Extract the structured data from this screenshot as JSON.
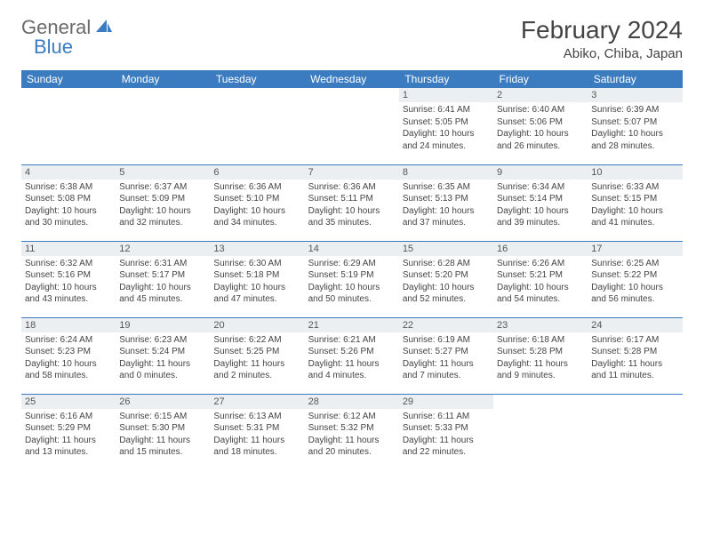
{
  "logo": {
    "part1": "General",
    "part2": "Blue"
  },
  "title": "February 2024",
  "location": "Abiko, Chiba, Japan",
  "colors": {
    "header_bg": "#3b7cc0",
    "header_text": "#ffffff",
    "daynum_bg": "#eceff1",
    "border": "#3b7cc0",
    "text": "#444444",
    "logo_gray": "#6a6a6a",
    "logo_blue": "#3b7cc0",
    "page_bg": "#ffffff"
  },
  "typography": {
    "title_fontsize": 28,
    "location_fontsize": 15,
    "header_fontsize": 12,
    "daynum_fontsize": 11,
    "body_fontsize": 10
  },
  "weekdays": [
    "Sunday",
    "Monday",
    "Tuesday",
    "Wednesday",
    "Thursday",
    "Friday",
    "Saturday"
  ],
  "weeks": [
    [
      null,
      null,
      null,
      null,
      {
        "num": "1",
        "sunrise": "Sunrise: 6:41 AM",
        "sunset": "Sunset: 5:05 PM",
        "daylight": "Daylight: 10 hours and 24 minutes."
      },
      {
        "num": "2",
        "sunrise": "Sunrise: 6:40 AM",
        "sunset": "Sunset: 5:06 PM",
        "daylight": "Daylight: 10 hours and 26 minutes."
      },
      {
        "num": "3",
        "sunrise": "Sunrise: 6:39 AM",
        "sunset": "Sunset: 5:07 PM",
        "daylight": "Daylight: 10 hours and 28 minutes."
      }
    ],
    [
      {
        "num": "4",
        "sunrise": "Sunrise: 6:38 AM",
        "sunset": "Sunset: 5:08 PM",
        "daylight": "Daylight: 10 hours and 30 minutes."
      },
      {
        "num": "5",
        "sunrise": "Sunrise: 6:37 AM",
        "sunset": "Sunset: 5:09 PM",
        "daylight": "Daylight: 10 hours and 32 minutes."
      },
      {
        "num": "6",
        "sunrise": "Sunrise: 6:36 AM",
        "sunset": "Sunset: 5:10 PM",
        "daylight": "Daylight: 10 hours and 34 minutes."
      },
      {
        "num": "7",
        "sunrise": "Sunrise: 6:36 AM",
        "sunset": "Sunset: 5:11 PM",
        "daylight": "Daylight: 10 hours and 35 minutes."
      },
      {
        "num": "8",
        "sunrise": "Sunrise: 6:35 AM",
        "sunset": "Sunset: 5:13 PM",
        "daylight": "Daylight: 10 hours and 37 minutes."
      },
      {
        "num": "9",
        "sunrise": "Sunrise: 6:34 AM",
        "sunset": "Sunset: 5:14 PM",
        "daylight": "Daylight: 10 hours and 39 minutes."
      },
      {
        "num": "10",
        "sunrise": "Sunrise: 6:33 AM",
        "sunset": "Sunset: 5:15 PM",
        "daylight": "Daylight: 10 hours and 41 minutes."
      }
    ],
    [
      {
        "num": "11",
        "sunrise": "Sunrise: 6:32 AM",
        "sunset": "Sunset: 5:16 PM",
        "daylight": "Daylight: 10 hours and 43 minutes."
      },
      {
        "num": "12",
        "sunrise": "Sunrise: 6:31 AM",
        "sunset": "Sunset: 5:17 PM",
        "daylight": "Daylight: 10 hours and 45 minutes."
      },
      {
        "num": "13",
        "sunrise": "Sunrise: 6:30 AM",
        "sunset": "Sunset: 5:18 PM",
        "daylight": "Daylight: 10 hours and 47 minutes."
      },
      {
        "num": "14",
        "sunrise": "Sunrise: 6:29 AM",
        "sunset": "Sunset: 5:19 PM",
        "daylight": "Daylight: 10 hours and 50 minutes."
      },
      {
        "num": "15",
        "sunrise": "Sunrise: 6:28 AM",
        "sunset": "Sunset: 5:20 PM",
        "daylight": "Daylight: 10 hours and 52 minutes."
      },
      {
        "num": "16",
        "sunrise": "Sunrise: 6:26 AM",
        "sunset": "Sunset: 5:21 PM",
        "daylight": "Daylight: 10 hours and 54 minutes."
      },
      {
        "num": "17",
        "sunrise": "Sunrise: 6:25 AM",
        "sunset": "Sunset: 5:22 PM",
        "daylight": "Daylight: 10 hours and 56 minutes."
      }
    ],
    [
      {
        "num": "18",
        "sunrise": "Sunrise: 6:24 AM",
        "sunset": "Sunset: 5:23 PM",
        "daylight": "Daylight: 10 hours and 58 minutes."
      },
      {
        "num": "19",
        "sunrise": "Sunrise: 6:23 AM",
        "sunset": "Sunset: 5:24 PM",
        "daylight": "Daylight: 11 hours and 0 minutes."
      },
      {
        "num": "20",
        "sunrise": "Sunrise: 6:22 AM",
        "sunset": "Sunset: 5:25 PM",
        "daylight": "Daylight: 11 hours and 2 minutes."
      },
      {
        "num": "21",
        "sunrise": "Sunrise: 6:21 AM",
        "sunset": "Sunset: 5:26 PM",
        "daylight": "Daylight: 11 hours and 4 minutes."
      },
      {
        "num": "22",
        "sunrise": "Sunrise: 6:19 AM",
        "sunset": "Sunset: 5:27 PM",
        "daylight": "Daylight: 11 hours and 7 minutes."
      },
      {
        "num": "23",
        "sunrise": "Sunrise: 6:18 AM",
        "sunset": "Sunset: 5:28 PM",
        "daylight": "Daylight: 11 hours and 9 minutes."
      },
      {
        "num": "24",
        "sunrise": "Sunrise: 6:17 AM",
        "sunset": "Sunset: 5:28 PM",
        "daylight": "Daylight: 11 hours and 11 minutes."
      }
    ],
    [
      {
        "num": "25",
        "sunrise": "Sunrise: 6:16 AM",
        "sunset": "Sunset: 5:29 PM",
        "daylight": "Daylight: 11 hours and 13 minutes."
      },
      {
        "num": "26",
        "sunrise": "Sunrise: 6:15 AM",
        "sunset": "Sunset: 5:30 PM",
        "daylight": "Daylight: 11 hours and 15 minutes."
      },
      {
        "num": "27",
        "sunrise": "Sunrise: 6:13 AM",
        "sunset": "Sunset: 5:31 PM",
        "daylight": "Daylight: 11 hours and 18 minutes."
      },
      {
        "num": "28",
        "sunrise": "Sunrise: 6:12 AM",
        "sunset": "Sunset: 5:32 PM",
        "daylight": "Daylight: 11 hours and 20 minutes."
      },
      {
        "num": "29",
        "sunrise": "Sunrise: 6:11 AM",
        "sunset": "Sunset: 5:33 PM",
        "daylight": "Daylight: 11 hours and 22 minutes."
      },
      null,
      null
    ]
  ]
}
